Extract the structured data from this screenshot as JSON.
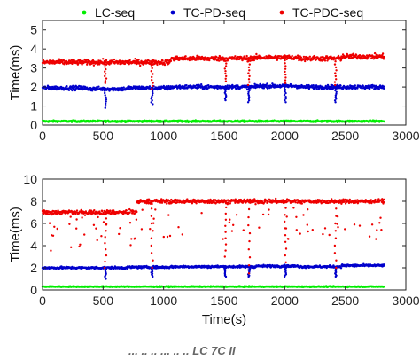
{
  "chart_data": [
    {
      "type": "scatter",
      "ylabel": "Time(ms)",
      "xlabel": "",
      "xlim": [
        0,
        3000
      ],
      "ylim": [
        0,
        5.5
      ],
      "x_ticks": [
        0,
        500,
        1000,
        1500,
        2000,
        2500,
        3000
      ],
      "y_ticks": [
        0,
        1,
        2,
        3,
        4,
        5
      ],
      "legend_position": "top",
      "grid": false,
      "dip_times": [
        520,
        905,
        1510,
        1705,
        2005,
        2420
      ],
      "series": [
        {
          "name": "LC-seq",
          "color": "#00ee00",
          "x_range": [
            0,
            2820
          ],
          "values": [
            0.2,
            0.2,
            0.2,
            0.2,
            0.2,
            0.2,
            0.2,
            0.2
          ]
        },
        {
          "name": "TC-PD-seq",
          "color": "#0000cc",
          "x_range": [
            0,
            2820
          ],
          "values": [
            1.95,
            1.9,
            1.95,
            2.0,
            2.0,
            2.05,
            2.0,
            2.0
          ],
          "dips": [
            0.9,
            1.1,
            1.3,
            1.2,
            1.2,
            1.2
          ]
        },
        {
          "name": "TC-PDC-seq",
          "color": "#ee0000",
          "x_range": [
            0,
            2820
          ],
          "values": [
            3.3,
            3.3,
            3.3,
            3.5,
            3.5,
            3.55,
            3.5,
            3.6
          ],
          "dips": [
            2.2,
            1.9,
            2.3,
            2.1,
            2.2,
            2.1
          ]
        }
      ]
    },
    {
      "type": "scatter",
      "ylabel": "Time(ms)",
      "xlabel": "Time(s)",
      "xlim": [
        0,
        3000
      ],
      "ylim": [
        0,
        10
      ],
      "x_ticks": [
        0,
        500,
        1000,
        1500,
        2000,
        2500,
        3000
      ],
      "y_ticks": [
        0,
        2,
        4,
        6,
        8,
        10
      ],
      "grid": false,
      "dip_times": [
        520,
        905,
        1510,
        1705,
        2005,
        2420
      ],
      "series": [
        {
          "name": "LC-seq",
          "color": "#00ee00",
          "x_range": [
            0,
            2820
          ],
          "values": [
            0.3,
            0.3,
            0.3,
            0.3,
            0.3,
            0.3,
            0.3,
            0.3
          ]
        },
        {
          "name": "TC-PD-seq",
          "color": "#0000cc",
          "x_range": [
            0,
            2820
          ],
          "values": [
            2.0,
            2.0,
            2.05,
            2.1,
            2.1,
            2.15,
            2.1,
            2.2
          ],
          "dips": [
            1.0,
            1.2,
            1.2,
            1.2,
            1.2,
            1.2
          ]
        },
        {
          "name": "TC-PDC-seq",
          "color": "#ee0000",
          "x_range": [
            0,
            2820
          ],
          "step": {
            "x": 780,
            "before": 7.0,
            "after": 8.0
          },
          "values": [
            7.0,
            7.0,
            7.0,
            8.0,
            8.0,
            8.0,
            8.0,
            8.0
          ],
          "dips": [
            2.0,
            2.0,
            3.0,
            1.5,
            2.5,
            2.0
          ]
        }
      ]
    }
  ],
  "caption_fragment": "...  ..  ..  ...  ..  .. LC 7C II"
}
